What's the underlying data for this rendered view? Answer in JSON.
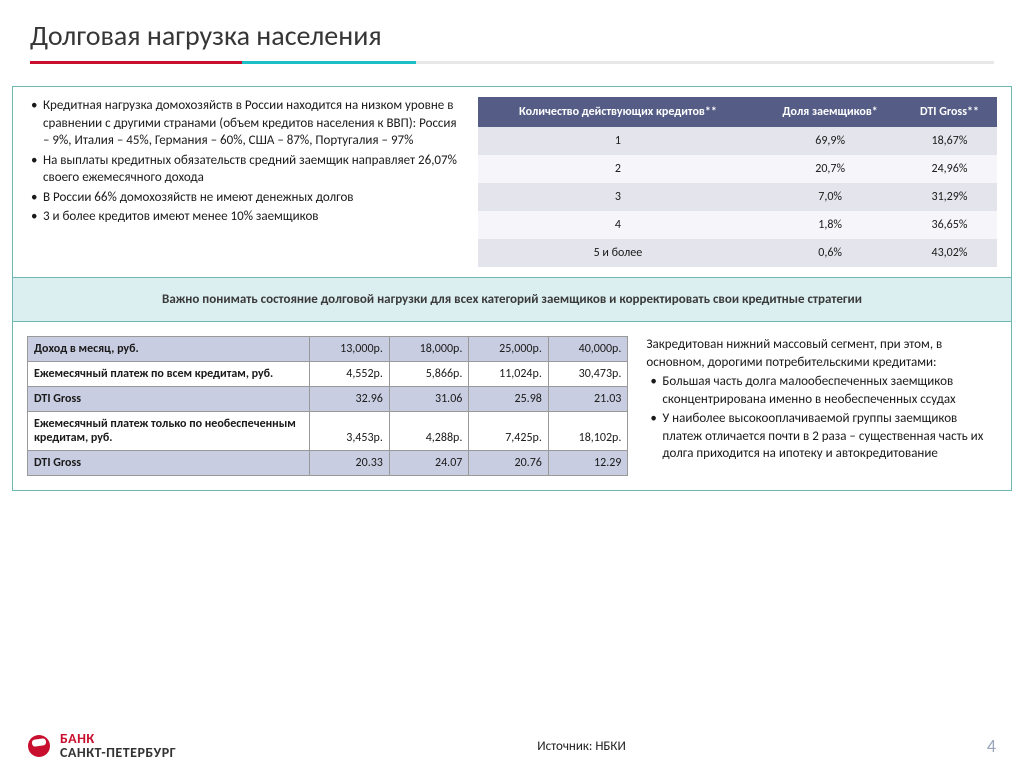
{
  "title": "Долговая нагрузка населения",
  "accent_colors": [
    "#c8102e",
    "#1dbfc7",
    "#e8e8e8"
  ],
  "accent_widths": [
    "22%",
    "18%",
    "60%"
  ],
  "border_color": "#6fb8b2",
  "bullets": [
    "Кредитная нагрузка домохозяйств в России находится на низком уровне в сравнении с другими странами (объем кредитов населения к ВВП): Россия – 9%, Италия – 45%, Германия – 60%, США – 87%, Португалия – 97%",
    "На выплаты кредитных обязательств средний заемщик направляет 26,07% своего ежемесячного дохода",
    "В России 66% домохозяйств не имеют денежных долгов",
    "3 и  более кредитов имеют менее 10% заемщиков"
  ],
  "table1": {
    "header_bg": "#555d87",
    "row_odd_bg": "#e4e4ed",
    "row_even_bg": "#f6f6fa",
    "columns": [
      "Количество действующих кредитов**",
      "Доля заемщиков*",
      "DTI Gross**"
    ],
    "rows": [
      [
        "1",
        "69,9%",
        "18,67%"
      ],
      [
        "2",
        "20,7%",
        "24,96%"
      ],
      [
        "3",
        "7,0%",
        "31,29%"
      ],
      [
        "4",
        "1,8%",
        "36,65%"
      ],
      [
        "5 и более",
        "0,6%",
        "43,02%"
      ]
    ]
  },
  "callout": "Важно понимать состояние долговой нагрузки для всех категорий заемщиков и корректировать свои кредитные стратегии",
  "callout_bg": "#dbeef0",
  "table2": {
    "header_bg": "#c9cde1",
    "rows": [
      {
        "label": "Доход в месяц, руб.",
        "vals": [
          "13,000р.",
          "18,000р.",
          "25,000р.",
          "40,000р."
        ],
        "hdr": true
      },
      {
        "label": "Ежемесячный платеж по всем кредитам, руб.",
        "vals": [
          "4,552р.",
          "5,866р.",
          "11,024р.",
          "30,473р."
        ],
        "hdr": false
      },
      {
        "label": "DTI Gross",
        "vals": [
          "32.96",
          "31.06",
          "25.98",
          "21.03"
        ],
        "hdr": true
      },
      {
        "label": "Ежемесячный платеж только по необеспеченным кредитам, руб.",
        "vals": [
          "3,453р.",
          "4,288р.",
          "7,425р.",
          "18,102р."
        ],
        "hdr": false
      },
      {
        "label": "DTI Gross",
        "vals": [
          "20.33",
          "24.07",
          "20.76",
          "12.29"
        ],
        "hdr": true
      }
    ]
  },
  "right_intro": "Закредитован нижний массовый сегмент, при этом, в основном, дорогими потребительскими кредитами:",
  "right_bullets": [
    "Большая часть долга малообеспеченных заемщиков сконцентрирована именно в необеспеченных ссудах",
    "У наиболее высокооплачиваемой группы заемщиков платеж отличается почти в 2 раза – существенная часть их долга приходится на ипотеку и автокредитование"
  ],
  "logo": {
    "line1": "БАНК",
    "line2": "САНКТ-ПЕТЕРБУРГ",
    "color": "#c8102e"
  },
  "source": "Источник: НБКИ",
  "page_number": "4"
}
